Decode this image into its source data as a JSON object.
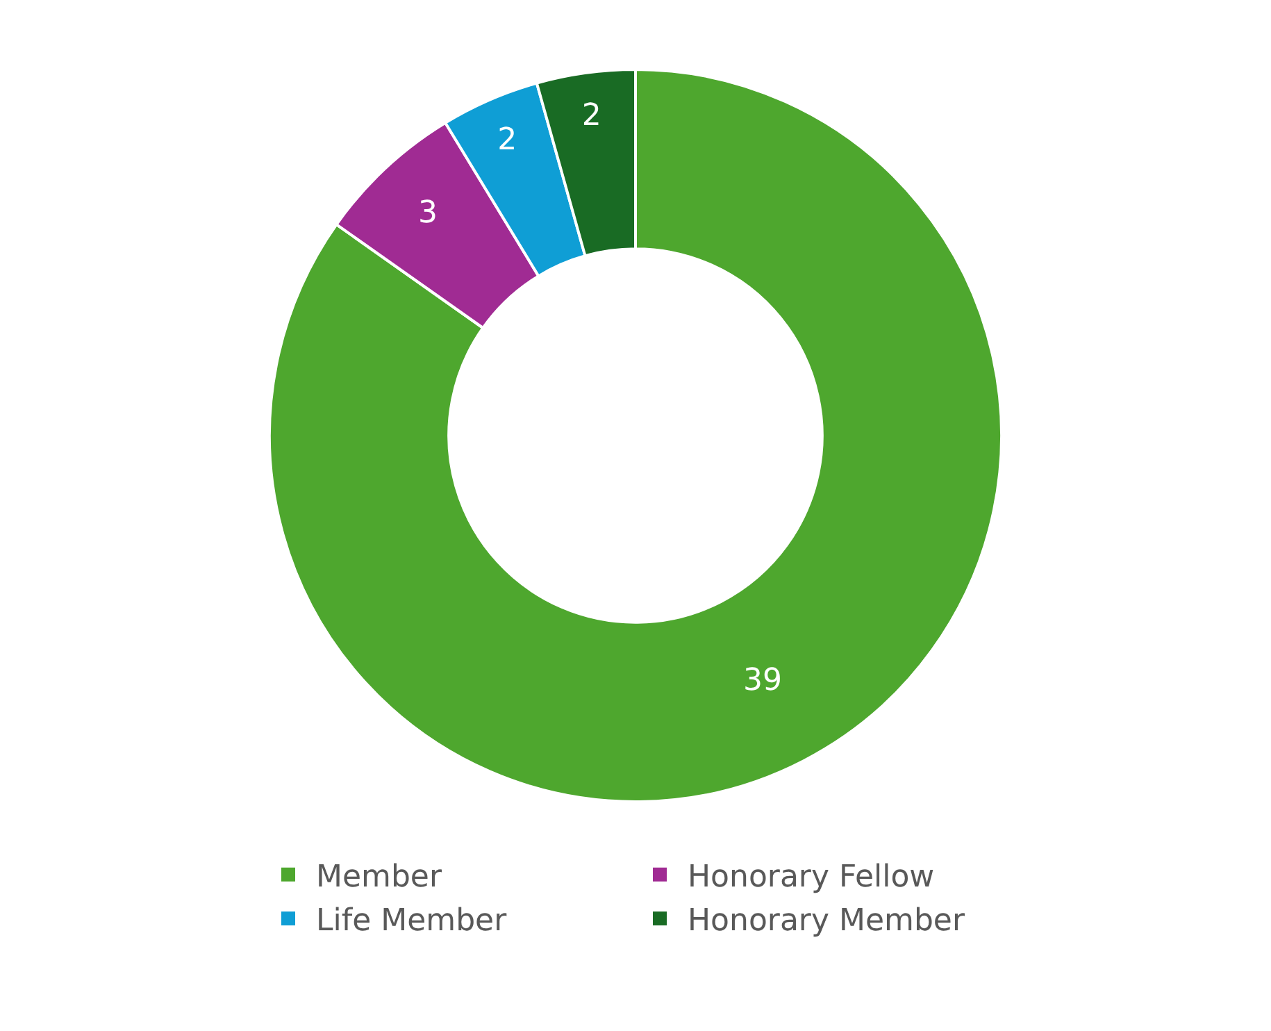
{
  "chart_data": {
    "type": "donut",
    "categories": [
      "Member",
      "Honorary Fellow",
      "Life Member",
      "Honorary Member"
    ],
    "values": [
      39,
      3,
      2,
      2
    ],
    "colors": [
      "#4ea72e",
      "#a02b93",
      "#0f9ed5",
      "#196b24"
    ],
    "data_labels": true,
    "legend": "bottom"
  }
}
